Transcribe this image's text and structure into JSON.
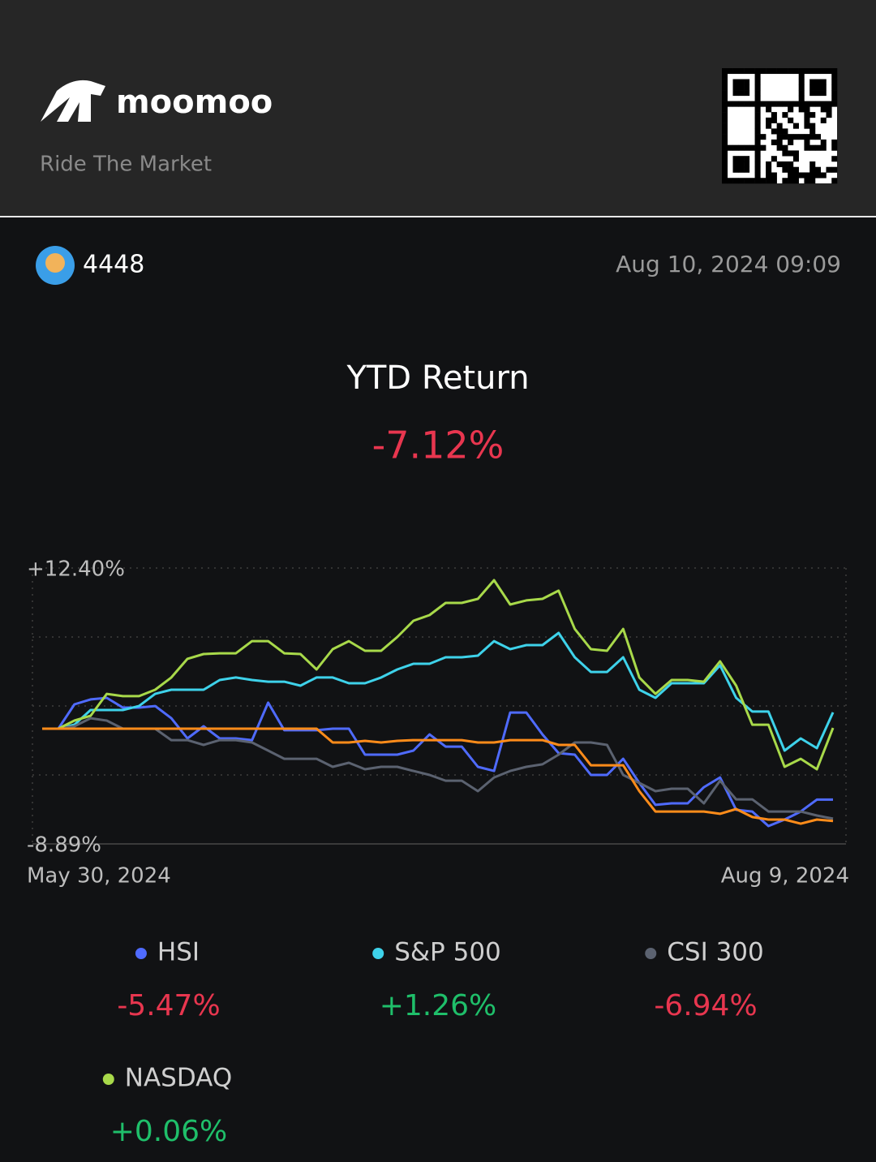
{
  "header": {
    "brand": "moomoo",
    "tagline": "Ride The Market"
  },
  "user": {
    "name": "4448",
    "timestamp": "Aug 10, 2024 09:09"
  },
  "chart_data": {
    "type": "line",
    "title": "YTD Return",
    "headline": "-7.12%",
    "categories": [
      "May 30, 2024",
      null,
      null,
      null,
      null,
      null,
      null,
      null,
      null,
      null,
      null,
      null,
      null,
      null,
      null,
      null,
      null,
      null,
      null,
      null,
      null,
      null,
      null,
      null,
      null,
      null,
      null,
      null,
      null,
      null,
      null,
      null,
      null,
      null,
      null,
      null,
      null,
      null,
      null,
      null,
      null,
      null,
      null,
      null,
      null,
      null,
      null,
      null,
      null,
      "Aug 9, 2024"
    ],
    "ylim": [
      -8.89,
      12.4
    ],
    "yticks": [
      {
        "value": -8.89,
        "label": "-8.89%"
      },
      {
        "value": 12.4,
        "label": "+12.40%"
      }
    ],
    "grid": true,
    "series": [
      {
        "name": "HSI",
        "color": "#4f6bff",
        "change": "-5.47%",
        "change_color": "#e8364f",
        "values": [
          0,
          0,
          1.88,
          2.26,
          2.38,
          1.63,
          1.63,
          1.75,
          0.81,
          -0.75,
          0.19,
          -0.75,
          -0.75,
          -0.88,
          2.01,
          -0.12,
          -0.12,
          -0.12,
          0,
          0,
          -2.0,
          -2.0,
          -2.0,
          -1.69,
          -0.44,
          -1.38,
          -1.38,
          -2.94,
          -3.26,
          1.25,
          1.25,
          -0.44,
          -1.88,
          -2.0,
          -3.57,
          -3.57,
          -2.32,
          -4.19,
          -5.88,
          -5.76,
          -5.76,
          -4.51,
          -3.76,
          -6.26,
          -6.39,
          -7.51,
          -7.01,
          -6.39,
          -5.47,
          -5.47
        ]
      },
      {
        "name": "S&P 500",
        "color": "#3ed2ea",
        "change": "+1.26%",
        "change_color": "#1fbf6a",
        "values": [
          0,
          0,
          0.31,
          1.44,
          1.44,
          1.44,
          1.75,
          2.69,
          3.01,
          3.01,
          3.01,
          3.76,
          3.95,
          3.76,
          3.63,
          3.63,
          3.32,
          3.95,
          3.95,
          3.51,
          3.51,
          3.95,
          4.57,
          5.01,
          5.01,
          5.51,
          5.51,
          5.64,
          6.76,
          6.14,
          6.45,
          6.45,
          7.39,
          5.51,
          4.38,
          4.38,
          5.51,
          3.01,
          2.38,
          3.51,
          3.51,
          3.51,
          4.89,
          2.38,
          1.32,
          1.32,
          -1.69,
          -0.75,
          -1.5,
          1.26
        ]
      },
      {
        "name": "CSI 300",
        "color": "#5b6270",
        "change": "-6.94%",
        "change_color": "#e8364f",
        "values": [
          0,
          0,
          0.19,
          0.81,
          0.63,
          0,
          0,
          0,
          -0.88,
          -0.88,
          -1.25,
          -0.88,
          -0.88,
          -1.06,
          -1.69,
          -2.32,
          -2.32,
          -2.32,
          -2.94,
          -2.63,
          -3.13,
          -2.94,
          -2.94,
          -3.26,
          -3.57,
          -4.01,
          -4.01,
          -4.82,
          -3.76,
          -3.26,
          -2.94,
          -2.75,
          -2.0,
          -1.06,
          -1.06,
          -1.25,
          -3.57,
          -4.19,
          -4.82,
          -4.63,
          -4.63,
          -5.76,
          -4.01,
          -5.45,
          -5.45,
          -6.39,
          -6.39,
          -6.39,
          -6.7,
          -6.94
        ]
      },
      {
        "name": "NASDAQ",
        "color": "#a8d94a",
        "change": "+0.06%",
        "change_color": "#1fbf6a",
        "values": [
          0,
          0,
          0.63,
          1.0,
          2.69,
          2.51,
          2.51,
          3.01,
          3.95,
          5.39,
          5.76,
          5.82,
          5.82,
          6.76,
          6.76,
          5.82,
          5.76,
          4.57,
          6.14,
          6.76,
          6.01,
          6.01,
          7.08,
          8.33,
          8.77,
          9.71,
          9.71,
          10.02,
          11.46,
          9.58,
          9.9,
          10.02,
          10.65,
          7.7,
          6.14,
          6.01,
          7.7,
          3.95,
          2.69,
          3.76,
          3.76,
          3.63,
          5.2,
          3.32,
          0.31,
          0.31,
          -2.94,
          -2.32,
          -3.13,
          0.06
        ]
      },
      {
        "color": "#ff8c1a",
        "values": [
          0,
          0,
          0,
          0,
          0,
          0,
          0,
          0,
          0,
          0,
          0,
          0,
          0,
          0,
          0,
          0,
          0,
          0,
          -1.06,
          -1.06,
          -0.94,
          -1.06,
          -0.94,
          -0.88,
          -0.88,
          -0.88,
          -0.88,
          -1.06,
          -1.06,
          -0.88,
          -0.88,
          -0.88,
          -1.25,
          -1.25,
          -2.82,
          -2.82,
          -2.82,
          -4.82,
          -6.39,
          -6.39,
          -6.39,
          -6.39,
          -6.57,
          -6.2,
          -6.82,
          -7.01,
          -7.01,
          -7.33,
          -7.01,
          -7.12
        ]
      }
    ]
  }
}
